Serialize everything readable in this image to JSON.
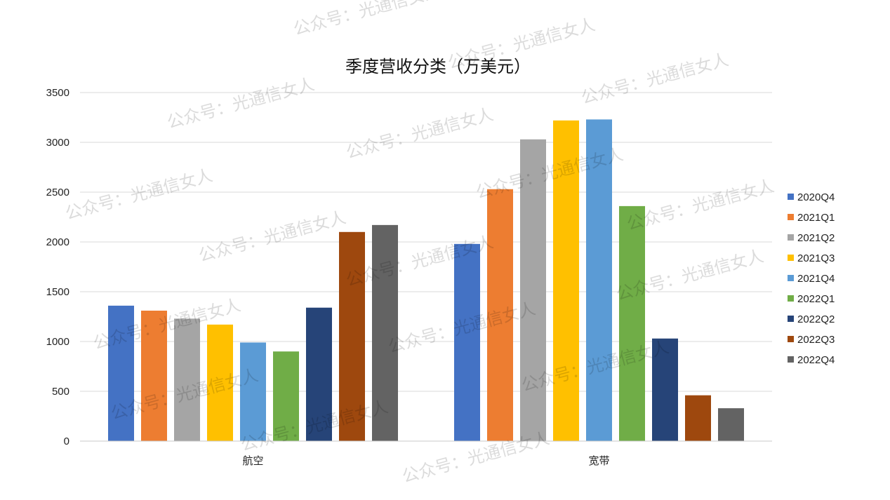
{
  "chart_data": {
    "type": "bar",
    "title": "季度营收分类（万美元）",
    "xlabel": "",
    "ylabel": "",
    "ylim": [
      0,
      3500
    ],
    "yticks": [
      0,
      500,
      1000,
      1500,
      2000,
      2500,
      3000,
      3500
    ],
    "grid": true,
    "legend_position": "right",
    "categories": [
      "航空",
      "宽带"
    ],
    "series": [
      {
        "name": "2020Q4",
        "color": "#4472C4",
        "values": [
          1360,
          1980
        ]
      },
      {
        "name": "2021Q1",
        "color": "#ED7D31",
        "values": [
          1310,
          2530
        ]
      },
      {
        "name": "2021Q2",
        "color": "#A5A5A5",
        "values": [
          1230,
          3030
        ]
      },
      {
        "name": "2021Q3",
        "color": "#FFC000",
        "values": [
          1170,
          3220
        ]
      },
      {
        "name": "2021Q4",
        "color": "#5B9BD5",
        "values": [
          990,
          3230
        ]
      },
      {
        "name": "2022Q1",
        "color": "#70AD47",
        "values": [
          900,
          2360
        ]
      },
      {
        "name": "2022Q2",
        "color": "#264478",
        "values": [
          1340,
          1030
        ]
      },
      {
        "name": "2022Q3",
        "color": "#9E480E",
        "values": [
          2100,
          460
        ]
      },
      {
        "name": "2022Q4",
        "color": "#636363",
        "values": [
          2170,
          330
        ]
      }
    ]
  },
  "watermark": {
    "text": "公众号：光通信女人"
  }
}
